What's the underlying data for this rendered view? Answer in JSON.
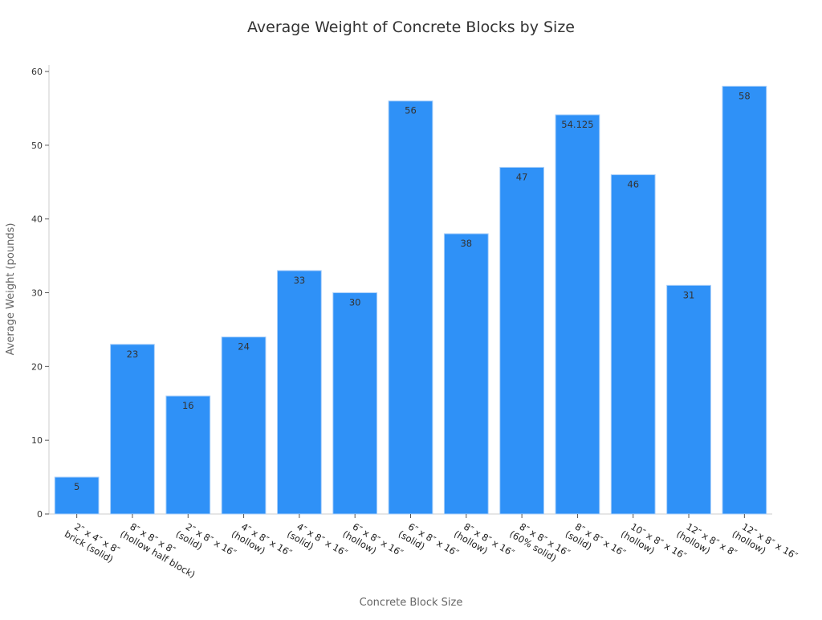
{
  "chart_data": {
    "type": "bar",
    "title": "Average Weight of Concrete Blocks by Size",
    "xlabel": "Concrete Block Size",
    "ylabel": "Average Weight (pounds)",
    "ylim": [
      0,
      60
    ],
    "yticks": [
      0,
      10,
      20,
      30,
      40,
      50,
      60
    ],
    "grid": false,
    "bar_color": "#2f91f7",
    "categories": [
      [
        "2″ x 4″ x 8″",
        "brick (solid)"
      ],
      [
        "8″ x 8″ x 8″",
        "(hollow half block)"
      ],
      [
        "2″ x 8″ x 16″",
        "(solid)"
      ],
      [
        "4″ x 8″ x 16″",
        "(hollow)"
      ],
      [
        "4″ x 8″ x 16″",
        "(solid)"
      ],
      [
        "6″ x 8″ x 16″",
        "(hollow)"
      ],
      [
        "6″ x 8″ x 16″",
        "(solid)"
      ],
      [
        "8″ x 8″ x 16″",
        "(hollow)"
      ],
      [
        "8″ x 8″ x 16″",
        "(60% solid)"
      ],
      [
        "8″ x 8″ x 16″",
        "(solid)"
      ],
      [
        "10″ x 8″ x 16″",
        "(hollow)"
      ],
      [
        "12″ x 8″ x 8″",
        "(hollow)"
      ],
      [
        "12″ x 8″ x 16″",
        "(hollow)"
      ]
    ],
    "values": [
      5,
      23,
      16,
      24,
      33,
      30,
      56,
      38,
      47,
      54.125,
      46,
      31,
      58
    ]
  }
}
